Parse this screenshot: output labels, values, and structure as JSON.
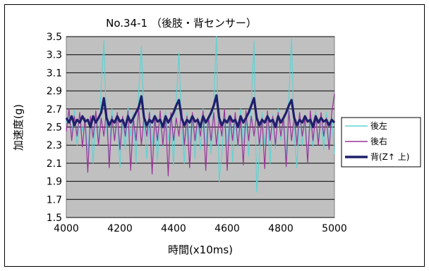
{
  "chart_data": {
    "type": "line",
    "title": "No.34-1 （後肢・背センサー）",
    "xlabel": "時間(x10ms)",
    "ylabel": "加速度(g)",
    "xlim": [
      4000,
      5000
    ],
    "ylim": [
      1.5,
      3.5
    ],
    "x_ticks": [
      "4000",
      "4200",
      "4400",
      "4600",
      "4800",
      "5000"
    ],
    "y_ticks": [
      "1.5",
      "1.7",
      "1.9",
      "2.1",
      "2.3",
      "2.5",
      "2.7",
      "2.9",
      "3.1",
      "3.3",
      "3.5"
    ],
    "grid": true,
    "plot_background": "#c0c0c0",
    "legend_position": "right",
    "series": [
      {
        "name": "後左",
        "color": "#5fd3d3",
        "points": [
          [
            4000,
            2.55
          ],
          [
            4010,
            2.62
          ],
          [
            4020,
            2.42
          ],
          [
            4030,
            2.68
          ],
          [
            4040,
            2.3
          ],
          [
            4050,
            2.66
          ],
          [
            4060,
            2.45
          ],
          [
            4070,
            2.58
          ],
          [
            4080,
            2.2
          ],
          [
            4090,
            2.6
          ],
          [
            4100,
            2.1
          ],
          [
            4110,
            2.65
          ],
          [
            4120,
            2.3
          ],
          [
            4130,
            2.95
          ],
          [
            4140,
            3.46
          ],
          [
            4150,
            2.5
          ],
          [
            4160,
            2.18
          ],
          [
            4170,
            2.7
          ],
          [
            4180,
            2.35
          ],
          [
            4190,
            2.62
          ],
          [
            4200,
            2.05
          ],
          [
            4210,
            2.6
          ],
          [
            4220,
            2.25
          ],
          [
            4230,
            2.72
          ],
          [
            4240,
            2.4
          ],
          [
            4250,
            2.66
          ],
          [
            4260,
            2.1
          ],
          [
            4270,
            2.9
          ],
          [
            4280,
            3.4
          ],
          [
            4290,
            2.55
          ],
          [
            4300,
            2.15
          ],
          [
            4310,
            2.7
          ],
          [
            4320,
            2.3
          ],
          [
            4330,
            2.64
          ],
          [
            4340,
            2.12
          ],
          [
            4350,
            2.62
          ],
          [
            4360,
            2.28
          ],
          [
            4370,
            2.68
          ],
          [
            4380,
            2.35
          ],
          [
            4390,
            2.6
          ],
          [
            4400,
            2.08
          ],
          [
            4410,
            2.8
          ],
          [
            4420,
            3.32
          ],
          [
            4430,
            2.5
          ],
          [
            4440,
            2.1
          ],
          [
            4450,
            2.66
          ],
          [
            4460,
            2.3
          ],
          [
            4470,
            2.62
          ],
          [
            4480,
            2.15
          ],
          [
            4490,
            2.6
          ],
          [
            4500,
            2.25
          ],
          [
            4510,
            2.7
          ],
          [
            4520,
            2.3
          ],
          [
            4530,
            2.62
          ],
          [
            4540,
            2.2
          ],
          [
            4550,
            2.8
          ],
          [
            4560,
            3.5
          ],
          [
            4570,
            1.9
          ],
          [
            4580,
            2.2
          ],
          [
            4590,
            2.66
          ],
          [
            4600,
            2.3
          ],
          [
            4610,
            2.62
          ],
          [
            4620,
            2.12
          ],
          [
            4630,
            2.6
          ],
          [
            4640,
            2.28
          ],
          [
            4650,
            2.7
          ],
          [
            4660,
            2.32
          ],
          [
            4670,
            2.62
          ],
          [
            4680,
            2.18
          ],
          [
            4690,
            2.8
          ],
          [
            4700,
            3.45
          ],
          [
            4710,
            1.78
          ],
          [
            4720,
            2.2
          ],
          [
            4730,
            2.66
          ],
          [
            4740,
            2.3
          ],
          [
            4750,
            2.6
          ],
          [
            4760,
            2.1
          ],
          [
            4770,
            2.64
          ],
          [
            4780,
            2.26
          ],
          [
            4790,
            2.7
          ],
          [
            4800,
            2.35
          ],
          [
            4810,
            2.62
          ],
          [
            4820,
            2.15
          ],
          [
            4830,
            2.85
          ],
          [
            4840,
            3.48
          ],
          [
            4850,
            2.4
          ],
          [
            4860,
            2.05
          ],
          [
            4870,
            2.66
          ],
          [
            4880,
            2.3
          ],
          [
            4890,
            2.62
          ],
          [
            4900,
            2.18
          ],
          [
            4910,
            2.6
          ],
          [
            4920,
            2.28
          ],
          [
            4930,
            2.68
          ],
          [
            4940,
            2.35
          ],
          [
            4950,
            2.62
          ],
          [
            4960,
            2.25
          ],
          [
            4970,
            2.66
          ],
          [
            4980,
            2.3
          ],
          [
            4990,
            2.6
          ],
          [
            5000,
            2.2
          ]
        ]
      },
      {
        "name": "後右",
        "color": "#993399",
        "points": [
          [
            4000,
            2.45
          ],
          [
            4010,
            2.7
          ],
          [
            4020,
            2.35
          ],
          [
            4030,
            2.62
          ],
          [
            4040,
            2.4
          ],
          [
            4050,
            2.66
          ],
          [
            4060,
            2.28
          ],
          [
            4070,
            2.6
          ],
          [
            4080,
            2.0
          ],
          [
            4090,
            2.62
          ],
          [
            4100,
            2.38
          ],
          [
            4110,
            2.68
          ],
          [
            4120,
            2.3
          ],
          [
            4130,
            2.6
          ],
          [
            4140,
            2.4
          ],
          [
            4150,
            2.7
          ],
          [
            4160,
            2.05
          ],
          [
            4170,
            2.62
          ],
          [
            4180,
            2.35
          ],
          [
            4190,
            2.66
          ],
          [
            4200,
            2.25
          ],
          [
            4210,
            2.62
          ],
          [
            4220,
            2.4
          ],
          [
            4230,
            2.68
          ],
          [
            4240,
            2.02
          ],
          [
            4250,
            2.6
          ],
          [
            4260,
            2.35
          ],
          [
            4270,
            2.7
          ],
          [
            4280,
            2.3
          ],
          [
            4290,
            2.62
          ],
          [
            4300,
            2.4
          ],
          [
            4310,
            2.66
          ],
          [
            4320,
            1.98
          ],
          [
            4330,
            2.6
          ],
          [
            4340,
            2.35
          ],
          [
            4350,
            2.68
          ],
          [
            4360,
            2.3
          ],
          [
            4370,
            2.62
          ],
          [
            4380,
            1.96
          ],
          [
            4390,
            2.66
          ],
          [
            4400,
            2.35
          ],
          [
            4410,
            2.6
          ],
          [
            4420,
            2.4
          ],
          [
            4430,
            2.7
          ],
          [
            4440,
            2.3
          ],
          [
            4450,
            2.62
          ],
          [
            4460,
            2.05
          ],
          [
            4470,
            2.66
          ],
          [
            4480,
            2.35
          ],
          [
            4490,
            2.6
          ],
          [
            4500,
            2.4
          ],
          [
            4510,
            2.68
          ],
          [
            4520,
            2.02
          ],
          [
            4530,
            2.62
          ],
          [
            4540,
            2.35
          ],
          [
            4550,
            2.66
          ],
          [
            4560,
            2.3
          ],
          [
            4570,
            2.6
          ],
          [
            4580,
            2.4
          ],
          [
            4590,
            2.7
          ],
          [
            4600,
            2.02
          ],
          [
            4610,
            2.62
          ],
          [
            4620,
            2.35
          ],
          [
            4630,
            2.66
          ],
          [
            4640,
            2.3
          ],
          [
            4650,
            2.6
          ],
          [
            4660,
            2.08
          ],
          [
            4670,
            2.68
          ],
          [
            4680,
            2.35
          ],
          [
            4690,
            2.62
          ],
          [
            4700,
            2.4
          ],
          [
            4710,
            2.66
          ],
          [
            4720,
            2.3
          ],
          [
            4730,
            2.6
          ],
          [
            4740,
            2.04
          ],
          [
            4750,
            2.68
          ],
          [
            4760,
            2.35
          ],
          [
            4770,
            2.62
          ],
          [
            4780,
            2.3
          ],
          [
            4790,
            2.66
          ],
          [
            4800,
            2.4
          ],
          [
            4810,
            2.6
          ],
          [
            4820,
            2.06
          ],
          [
            4830,
            2.68
          ],
          [
            4840,
            2.35
          ],
          [
            4850,
            2.62
          ],
          [
            4860,
            2.3
          ],
          [
            4870,
            2.66
          ],
          [
            4880,
            2.4
          ],
          [
            4890,
            2.6
          ],
          [
            4900,
            2.1
          ],
          [
            4910,
            2.68
          ],
          [
            4920,
            2.35
          ],
          [
            4930,
            2.62
          ],
          [
            4940,
            2.3
          ],
          [
            4950,
            2.66
          ],
          [
            4960,
            2.4
          ],
          [
            4970,
            2.6
          ],
          [
            4980,
            2.25
          ],
          [
            4990,
            2.66
          ],
          [
            5000,
            2.87
          ]
        ]
      },
      {
        "name": "背(Z↑ 上)",
        "color": "#1f1f6b",
        "points": [
          [
            4000,
            2.6
          ],
          [
            4010,
            2.55
          ],
          [
            4020,
            2.62
          ],
          [
            4030,
            2.52
          ],
          [
            4040,
            2.58
          ],
          [
            4050,
            2.55
          ],
          [
            4060,
            2.62
          ],
          [
            4070,
            2.56
          ],
          [
            4080,
            2.58
          ],
          [
            4090,
            2.5
          ],
          [
            4100,
            2.62
          ],
          [
            4110,
            2.55
          ],
          [
            4120,
            2.6
          ],
          [
            4130,
            2.66
          ],
          [
            4140,
            2.82
          ],
          [
            4150,
            2.6
          ],
          [
            4160,
            2.52
          ],
          [
            4170,
            2.58
          ],
          [
            4180,
            2.55
          ],
          [
            4190,
            2.62
          ],
          [
            4200,
            2.56
          ],
          [
            4210,
            2.58
          ],
          [
            4220,
            2.5
          ],
          [
            4230,
            2.62
          ],
          [
            4240,
            2.55
          ],
          [
            4250,
            2.6
          ],
          [
            4260,
            2.66
          ],
          [
            4270,
            2.72
          ],
          [
            4280,
            2.84
          ],
          [
            4290,
            2.6
          ],
          [
            4300,
            2.52
          ],
          [
            4310,
            2.58
          ],
          [
            4320,
            2.55
          ],
          [
            4330,
            2.62
          ],
          [
            4340,
            2.56
          ],
          [
            4350,
            2.58
          ],
          [
            4360,
            2.5
          ],
          [
            4370,
            2.62
          ],
          [
            4380,
            2.55
          ],
          [
            4390,
            2.6
          ],
          [
            4400,
            2.66
          ],
          [
            4410,
            2.74
          ],
          [
            4420,
            2.8
          ],
          [
            4430,
            2.6
          ],
          [
            4440,
            2.52
          ],
          [
            4450,
            2.58
          ],
          [
            4460,
            2.55
          ],
          [
            4470,
            2.62
          ],
          [
            4480,
            2.56
          ],
          [
            4490,
            2.58
          ],
          [
            4500,
            2.5
          ],
          [
            4510,
            2.62
          ],
          [
            4520,
            2.55
          ],
          [
            4530,
            2.6
          ],
          [
            4540,
            2.66
          ],
          [
            4550,
            2.74
          ],
          [
            4560,
            2.85
          ],
          [
            4570,
            2.6
          ],
          [
            4580,
            2.52
          ],
          [
            4590,
            2.58
          ],
          [
            4600,
            2.55
          ],
          [
            4610,
            2.62
          ],
          [
            4620,
            2.56
          ],
          [
            4630,
            2.58
          ],
          [
            4640,
            2.5
          ],
          [
            4650,
            2.62
          ],
          [
            4660,
            2.55
          ],
          [
            4670,
            2.6
          ],
          [
            4680,
            2.66
          ],
          [
            4690,
            2.74
          ],
          [
            4700,
            2.82
          ],
          [
            4710,
            2.6
          ],
          [
            4720,
            2.52
          ],
          [
            4730,
            2.58
          ],
          [
            4740,
            2.55
          ],
          [
            4750,
            2.62
          ],
          [
            4760,
            2.56
          ],
          [
            4770,
            2.58
          ],
          [
            4780,
            2.5
          ],
          [
            4790,
            2.62
          ],
          [
            4800,
            2.55
          ],
          [
            4810,
            2.6
          ],
          [
            4820,
            2.66
          ],
          [
            4830,
            2.74
          ],
          [
            4840,
            2.8
          ],
          [
            4850,
            2.6
          ],
          [
            4860,
            2.52
          ],
          [
            4870,
            2.58
          ],
          [
            4880,
            2.55
          ],
          [
            4890,
            2.62
          ],
          [
            4900,
            2.56
          ],
          [
            4910,
            2.58
          ],
          [
            4920,
            2.5
          ],
          [
            4930,
            2.62
          ],
          [
            4940,
            2.55
          ],
          [
            4950,
            2.6
          ],
          [
            4960,
            2.56
          ],
          [
            4970,
            2.58
          ],
          [
            4980,
            2.52
          ],
          [
            4990,
            2.58
          ],
          [
            5000,
            2.55
          ]
        ]
      }
    ]
  }
}
